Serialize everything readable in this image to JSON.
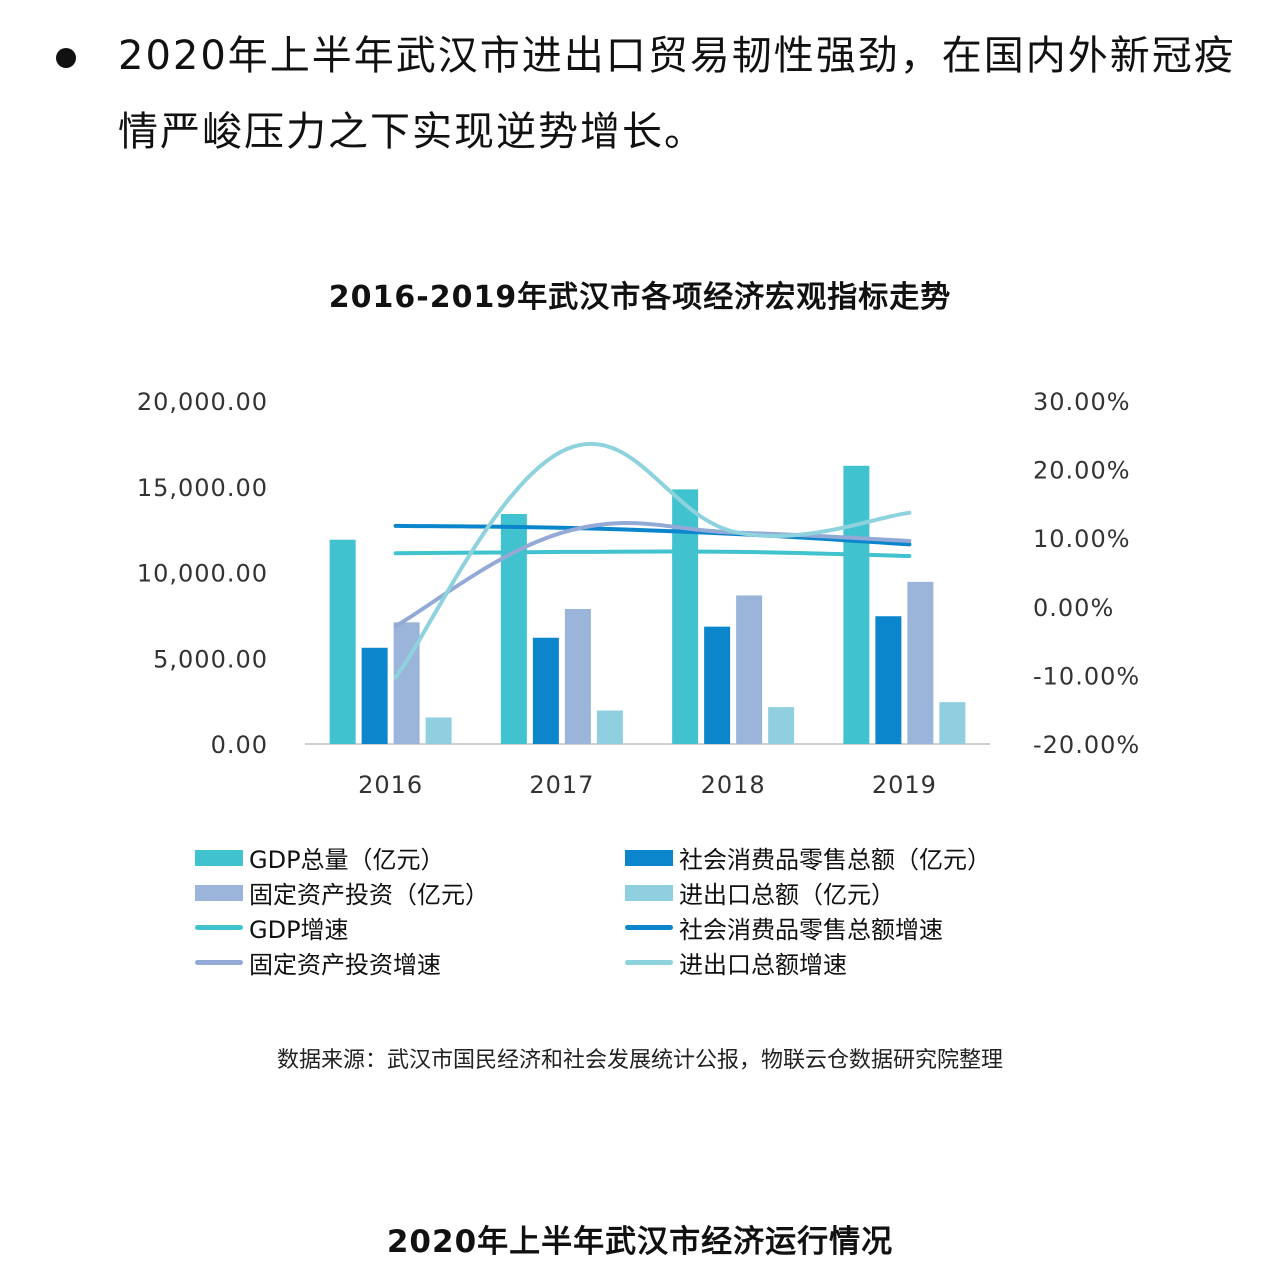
{
  "bullet": {
    "text": "2020年上半年武汉市进出口贸易韧性强劲，在国内外新冠疫情严峻压力之下实现逆势增长。"
  },
  "chart_data": {
    "type": "bar",
    "title": "2016-2019年武汉市各项经济宏观指标走势",
    "categories": [
      "2016",
      "2017",
      "2018",
      "2019"
    ],
    "y_left": {
      "ticks": [
        "20,000.00",
        "15,000.00",
        "10,000.00",
        "5,000.00",
        "0.00"
      ],
      "range": [
        0,
        20000
      ]
    },
    "y_right": {
      "ticks": [
        "30.00%",
        "20.00%",
        "10.00%",
        "0.00%",
        "-10.00%",
        "-20.00%"
      ],
      "range": [
        -20,
        30
      ]
    },
    "bar_series": [
      {
        "name": "GDP总量（亿元）",
        "color": "#41c3cf",
        "values": [
          11913,
          13410,
          14847,
          16223
        ]
      },
      {
        "name": "社会消费品零售总额（亿元）",
        "color": "#0b86cc",
        "values": [
          5611,
          6196,
          6843,
          7450
        ]
      },
      {
        "name": "固定资产投资（亿元）",
        "color": "#9bb4d9",
        "values": [
          7095,
          7873,
          8662,
          9455
        ]
      },
      {
        "name": "进出口总额（亿元）",
        "color": "#8fcfdf",
        "values": [
          1547,
          1952,
          2149,
          2440
        ]
      }
    ],
    "line_series": [
      {
        "name": "GDP增速",
        "color": "#41c3cf",
        "values": [
          7.8,
          8.0,
          8.0,
          7.4
        ]
      },
      {
        "name": "社会消费品零售总额增速",
        "color": "#0b86cc",
        "values": [
          11.8,
          11.5,
          10.6,
          9.1
        ]
      },
      {
        "name": "固定资产投资增速",
        "color": "#93a9d6",
        "values": [
          -2.8,
          11.0,
          10.8,
          9.6
        ]
      },
      {
        "name": "进出口总额增速",
        "color": "#8ed2dd",
        "values": [
          -10.3,
          23.0,
          10.8,
          13.7
        ]
      }
    ]
  },
  "source": "数据来源：武汉市国民经济和社会发展统计公报，物联云仓数据研究院整理",
  "section_title": "2020年上半年武汉市经济运行情况"
}
